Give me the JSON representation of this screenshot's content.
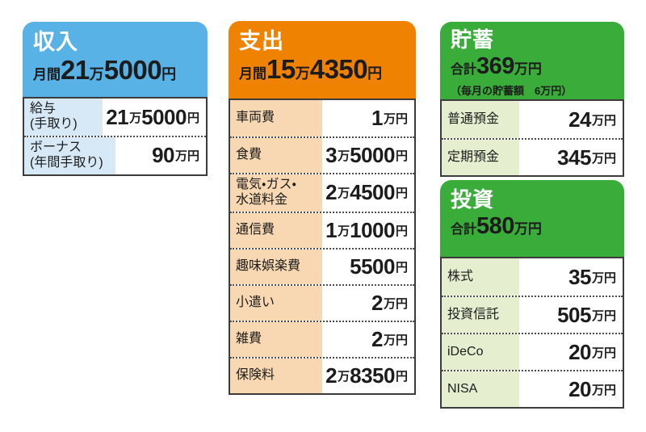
{
  "colors": {
    "blue_header": "#58B2E6",
    "blue_label": "#D7E8F6",
    "orange_header": "#EF8200",
    "orange_label": "#F8D8B2",
    "green_header": "#3AAC39",
    "green_label": "#E5EFD0",
    "border": "#3C3C3C",
    "text": "#1C1C1C"
  },
  "panels": {
    "income": {
      "title": "収入",
      "amount_prefix": "月間",
      "amount": "21万5000円",
      "rows": [
        {
          "label": "給与\n(手取り)",
          "value": "21万5000円"
        },
        {
          "label": "ボーナス\n(年間手取り)",
          "value": "90万円"
        }
      ]
    },
    "expenses": {
      "title": "支出",
      "amount_prefix": "月間",
      "amount": "15万4350円",
      "rows": [
        {
          "label": "車両費",
          "value": "1万円"
        },
        {
          "label": "食費",
          "value": "3万5000円"
        },
        {
          "label": "電気・ガス・\n水道料金",
          "value": "2万4500円"
        },
        {
          "label": "通信費",
          "value": "1万1000円"
        },
        {
          "label": "趣味娯楽費",
          "value": "5500円"
        },
        {
          "label": "小遣い",
          "value": "2万円"
        },
        {
          "label": "雑費",
          "value": "2万円"
        },
        {
          "label": "保険料",
          "value": "2万8350円"
        }
      ]
    },
    "savings": {
      "title": "貯蓄",
      "amount_prefix": "合計",
      "amount": "369万円",
      "note": "（毎月の貯蓄額　6万円）",
      "rows": [
        {
          "label": "普通預金",
          "value": "24万円"
        },
        {
          "label": "定期預金",
          "value": "345万円"
        }
      ]
    },
    "investment": {
      "title": "投資",
      "amount_prefix": "合計",
      "amount": "580万円",
      "rows": [
        {
          "label": "株式",
          "value": "35万円"
        },
        {
          "label": "投資信託",
          "value": "505万円"
        },
        {
          "label": "iDeCo",
          "value": "20万円"
        },
        {
          "label": "NISA",
          "value": "20万円"
        }
      ]
    }
  },
  "chart_data": [
    {
      "type": "table",
      "title": "収入",
      "subtitle": "月間21万5000円",
      "monthly_total_yen": 215000,
      "categories": [
        "給与（手取り）",
        "ボーナス（年間手取り）"
      ],
      "values_yen": [
        215000,
        900000
      ],
      "values_display": [
        "21万5000円",
        "90万円"
      ]
    },
    {
      "type": "table",
      "title": "支出",
      "subtitle": "月間15万4350円",
      "monthly_total_yen": 154350,
      "categories": [
        "車両費",
        "食費",
        "電気・ガス・水道料金",
        "通信費",
        "趣味娯楽費",
        "小遣い",
        "雑費",
        "保険料"
      ],
      "values_yen": [
        10000,
        35000,
        24500,
        11000,
        5500,
        20000,
        20000,
        28350
      ],
      "values_display": [
        "1万円",
        "3万5000円",
        "2万4500円",
        "1万1000円",
        "5500円",
        "2万円",
        "2万円",
        "2万8350円"
      ]
    },
    {
      "type": "table",
      "title": "貯蓄",
      "subtitle": "合計369万円",
      "note": "毎月の貯蓄額 6万円",
      "total_yen": 3690000,
      "monthly_saving_yen": 60000,
      "categories": [
        "普通預金",
        "定期預金"
      ],
      "values_yen": [
        240000,
        3450000
      ],
      "values_display": [
        "24万円",
        "345万円"
      ]
    },
    {
      "type": "table",
      "title": "投資",
      "subtitle": "合計580万円",
      "total_yen": 5800000,
      "categories": [
        "株式",
        "投資信託",
        "iDeCo",
        "NISA"
      ],
      "values_yen": [
        350000,
        5050000,
        200000,
        200000
      ],
      "values_display": [
        "35万円",
        "505万円",
        "20万円",
        "20万円"
      ]
    }
  ]
}
